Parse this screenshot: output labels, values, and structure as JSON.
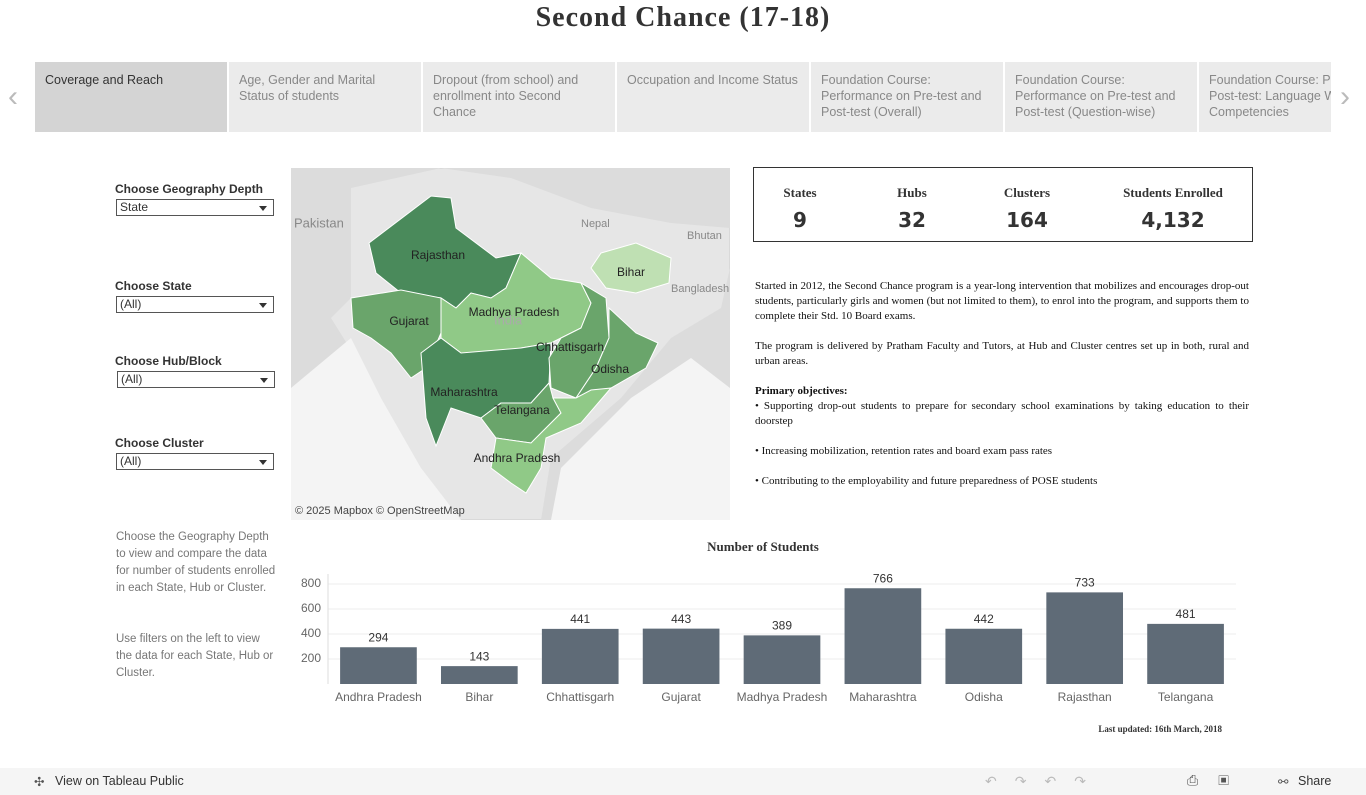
{
  "header": {
    "title": "Second Chance (17-18)"
  },
  "tabs": [
    "Coverage and Reach",
    "Age, Gender and Marital Status of students",
    "Dropout (from school) and enrollment into Second Chance",
    "Occupation and Income Status",
    "Foundation Course: Performance on Pre-test and Post-test (Overall)",
    "Foundation Course: Performance on Pre-test and Post-test (Question-wise)",
    "Foundation Course: Pre vs Post-test: Language Writing Competencies"
  ],
  "filters": [
    {
      "label": "Choose Geography Depth",
      "value": "State"
    },
    {
      "label": "Choose State",
      "value": "(All)"
    },
    {
      "label": "Choose Hub/Block",
      "value": "(All)"
    },
    {
      "label": "Choose Cluster",
      "value": "(All)"
    }
  ],
  "help": [
    "Choose the Geography Depth to view and compare the data for number of students enrolled in each State, Hub or Cluster.",
    "Use filters on the left to view the data for each State, Hub or Cluster."
  ],
  "map": {
    "states": [
      "Rajasthan",
      "Gujarat",
      "Madhya Pradesh",
      "Maharashtra",
      "Chhattisgarh",
      "Odisha",
      "Telangana",
      "Andhra Pradesh",
      "Bihar"
    ],
    "places": [
      "Pakistan",
      "Nepal",
      "Bangladesh",
      "Bhutan",
      "India"
    ],
    "attribution": "© 2025 Mapbox © OpenStreetMap"
  },
  "kpis": [
    {
      "label": "States",
      "value": "9"
    },
    {
      "label": "Hubs",
      "value": "32"
    },
    {
      "label": "Clusters",
      "value": "164"
    },
    {
      "label": "Students Enrolled",
      "value": "4,132"
    }
  ],
  "description": {
    "paragraphs": [
      "Started in 2012, the Second Chance program is a year-long intervention that mobilizes and encourages drop-out students, particularly girls and women (but not limited to them), to enrol into the program, and supports them to complete their Std. 10 Board exams.",
      "The program is delivered by Pratham Faculty and Tutors, at Hub and Cluster centres set up in both, rural and urban areas."
    ],
    "objectives_title": "Primary objectives:",
    "objectives": [
      "• Supporting drop-out students to prepare for secondary school examinations by taking education to their doorstep",
      "• Increasing mobilization, retention rates and board exam pass rates",
      "• Contributing to the employability and future preparedness of POSE students"
    ]
  },
  "chart_data": {
    "type": "bar",
    "title": "Number of Students",
    "categories": [
      "Andhra Pradesh",
      "Bihar",
      "Chhattisgarh",
      "Gujarat",
      "Madhya Pradesh",
      "Maharashtra",
      "Odisha",
      "Rajasthan",
      "Telangana"
    ],
    "values": [
      294,
      143,
      441,
      443,
      389,
      766,
      442,
      733,
      481
    ],
    "color": "#5f6b77",
    "ylim": [
      0,
      880
    ],
    "yticks": [
      200,
      400,
      600,
      800
    ],
    "grid": true
  },
  "footer": {
    "updated": "Last updated: 16th March, 2018",
    "tableau": "View on Tableau Public",
    "share": "Share"
  }
}
